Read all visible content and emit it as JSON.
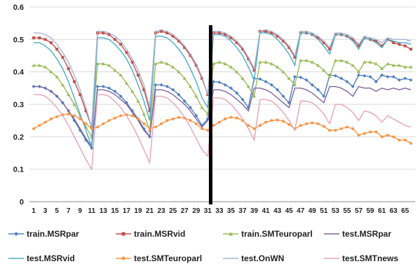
{
  "chart_data": {
    "type": "line",
    "x": [
      1,
      2,
      3,
      4,
      5,
      6,
      7,
      8,
      9,
      10,
      11,
      12,
      13,
      14,
      15,
      16,
      17,
      18,
      19,
      20,
      21,
      22,
      23,
      24,
      25,
      26,
      27,
      28,
      29,
      30,
      31,
      32,
      33,
      34,
      35,
      36,
      37,
      38,
      39,
      40,
      41,
      42,
      43,
      44,
      45,
      46,
      47,
      48,
      49,
      50,
      51,
      52,
      53,
      54,
      55,
      56,
      57,
      58,
      59,
      60,
      61,
      62,
      63,
      64,
      65,
      66
    ],
    "x_tick_labels": [
      "1",
      "3",
      "5",
      "7",
      "9",
      "11",
      "13",
      "15",
      "17",
      "19",
      "21",
      "23",
      "25",
      "27",
      "29",
      "31",
      "33",
      "35",
      "37",
      "39",
      "41",
      "43",
      "45",
      "47",
      "49",
      "51",
      "53",
      "55",
      "57",
      "59",
      "61",
      "63",
      "65"
    ],
    "ylim": [
      0,
      0.6
    ],
    "y_tick_labels": [
      "0",
      "0.1",
      "0.2",
      "0.3",
      "0.4",
      "0.5",
      "0.6"
    ],
    "grid": "horizontal",
    "legend_position": "bottom",
    "vertical_marker_x": 31.5,
    "series": [
      {
        "name": "train.MSRpar",
        "color": "#4f81bd",
        "marker": "diamond",
        "values": [
          0.355,
          0.355,
          0.35,
          0.34,
          0.325,
          0.305,
          0.28,
          0.25,
          0.22,
          0.19,
          0.165,
          0.355,
          0.355,
          0.35,
          0.34,
          0.325,
          0.305,
          0.28,
          0.255,
          0.225,
          0.2,
          0.36,
          0.36,
          0.355,
          0.345,
          0.33,
          0.31,
          0.29,
          0.265,
          0.235,
          0.255,
          0.37,
          0.368,
          0.36,
          0.35,
          0.335,
          0.315,
          0.29,
          0.38,
          0.378,
          0.37,
          0.36,
          0.345,
          0.325,
          0.305,
          0.385,
          0.383,
          0.375,
          0.36,
          0.345,
          0.325,
          0.39,
          0.388,
          0.38,
          0.37,
          0.355,
          0.39,
          0.388,
          0.385,
          0.37,
          0.39,
          0.385,
          0.385,
          0.375,
          0.38,
          0.375
        ]
      },
      {
        "name": "train.MSRvid",
        "color": "#c0504d",
        "marker": "square",
        "values": [
          0.505,
          0.505,
          0.5,
          0.49,
          0.47,
          0.445,
          0.41,
          0.37,
          0.33,
          0.28,
          0.23,
          0.52,
          0.52,
          0.515,
          0.5,
          0.485,
          0.46,
          0.43,
          0.39,
          0.345,
          0.28,
          0.52,
          0.525,
          0.52,
          0.51,
          0.495,
          0.475,
          0.45,
          0.42,
          0.38,
          0.33,
          0.52,
          0.52,
          0.515,
          0.505,
          0.49,
          0.47,
          0.44,
          0.405,
          0.525,
          0.525,
          0.52,
          0.51,
          0.495,
          0.475,
          0.445,
          0.52,
          0.52,
          0.515,
          0.505,
          0.49,
          0.47,
          0.515,
          0.515,
          0.51,
          0.5,
          0.48,
          0.505,
          0.5,
          0.495,
          0.48,
          0.5,
          0.49,
          0.485,
          0.48,
          0.47
        ]
      },
      {
        "name": "train.SMTeuroparl",
        "color": "#9bbb59",
        "marker": "triangle",
        "values": [
          0.42,
          0.42,
          0.415,
          0.4,
          0.385,
          0.36,
          0.33,
          0.3,
          0.265,
          0.23,
          0.2,
          0.425,
          0.425,
          0.42,
          0.405,
          0.39,
          0.365,
          0.34,
          0.31,
          0.27,
          0.22,
          0.425,
          0.43,
          0.425,
          0.415,
          0.4,
          0.38,
          0.355,
          0.325,
          0.29,
          0.27,
          0.425,
          0.43,
          0.425,
          0.415,
          0.4,
          0.38,
          0.355,
          0.325,
          0.43,
          0.43,
          0.425,
          0.415,
          0.4,
          0.38,
          0.36,
          0.435,
          0.435,
          0.43,
          0.42,
          0.405,
          0.385,
          0.435,
          0.435,
          0.43,
          0.42,
          0.4,
          0.43,
          0.43,
          0.425,
          0.41,
          0.425,
          0.42,
          0.42,
          0.415,
          0.415
        ]
      },
      {
        "name": "test.MSRpar",
        "color": "#8064a2",
        "marker": "none",
        "values": [
          0.355,
          0.355,
          0.35,
          0.34,
          0.325,
          0.305,
          0.28,
          0.255,
          0.225,
          0.195,
          0.17,
          0.345,
          0.345,
          0.34,
          0.33,
          0.315,
          0.3,
          0.275,
          0.25,
          0.22,
          0.2,
          0.345,
          0.345,
          0.34,
          0.33,
          0.315,
          0.3,
          0.28,
          0.255,
          0.23,
          0.25,
          0.345,
          0.345,
          0.34,
          0.33,
          0.315,
          0.3,
          0.28,
          0.35,
          0.35,
          0.345,
          0.335,
          0.32,
          0.305,
          0.29,
          0.35,
          0.35,
          0.345,
          0.335,
          0.32,
          0.305,
          0.355,
          0.355,
          0.35,
          0.34,
          0.325,
          0.355,
          0.35,
          0.35,
          0.34,
          0.35,
          0.345,
          0.35,
          0.345,
          0.35,
          0.345
        ]
      },
      {
        "name": "test.MSRvid",
        "color": "#4bacc6",
        "marker": "none",
        "values": [
          0.49,
          0.49,
          0.48,
          0.465,
          0.44,
          0.41,
          0.37,
          0.32,
          0.27,
          0.22,
          0.17,
          0.505,
          0.505,
          0.5,
          0.485,
          0.465,
          0.44,
          0.405,
          0.36,
          0.31,
          0.25,
          0.51,
          0.51,
          0.505,
          0.49,
          0.47,
          0.445,
          0.41,
          0.37,
          0.32,
          0.29,
          0.515,
          0.515,
          0.51,
          0.495,
          0.475,
          0.45,
          0.415,
          0.375,
          0.52,
          0.52,
          0.515,
          0.5,
          0.48,
          0.455,
          0.42,
          0.52,
          0.52,
          0.515,
          0.5,
          0.48,
          0.455,
          0.515,
          0.515,
          0.51,
          0.495,
          0.47,
          0.505,
          0.5,
          0.49,
          0.475,
          0.5,
          0.495,
          0.49,
          0.49,
          0.485
        ]
      },
      {
        "name": "test.SMTeuroparl",
        "color": "#f79646",
        "marker": "circle",
        "values": [
          0.225,
          0.235,
          0.245,
          0.255,
          0.262,
          0.268,
          0.27,
          0.265,
          0.255,
          0.24,
          0.225,
          0.23,
          0.24,
          0.25,
          0.258,
          0.265,
          0.268,
          0.265,
          0.255,
          0.24,
          0.225,
          0.23,
          0.24,
          0.25,
          0.255,
          0.26,
          0.258,
          0.25,
          0.24,
          0.225,
          0.22,
          0.235,
          0.245,
          0.255,
          0.26,
          0.258,
          0.25,
          0.235,
          0.225,
          0.235,
          0.245,
          0.25,
          0.252,
          0.248,
          0.238,
          0.225,
          0.235,
          0.24,
          0.243,
          0.24,
          0.232,
          0.22,
          0.22,
          0.225,
          0.23,
          0.225,
          0.205,
          0.21,
          0.215,
          0.215,
          0.2,
          0.205,
          0.2,
          0.19,
          0.19,
          0.18
        ]
      },
      {
        "name": "test.OnWN",
        "color": "#a5b4d1",
        "marker": "none",
        "values": [
          0.52,
          0.52,
          0.515,
          0.505,
          0.485,
          0.46,
          0.43,
          0.39,
          0.345,
          0.29,
          0.23,
          0.525,
          0.525,
          0.52,
          0.51,
          0.495,
          0.47,
          0.44,
          0.405,
          0.36,
          0.29,
          0.525,
          0.53,
          0.525,
          0.515,
          0.5,
          0.48,
          0.455,
          0.425,
          0.385,
          0.33,
          0.525,
          0.525,
          0.52,
          0.51,
          0.495,
          0.475,
          0.445,
          0.41,
          0.525,
          0.53,
          0.525,
          0.515,
          0.5,
          0.48,
          0.45,
          0.525,
          0.525,
          0.52,
          0.51,
          0.495,
          0.475,
          0.52,
          0.52,
          0.515,
          0.505,
          0.485,
          0.51,
          0.505,
          0.5,
          0.49,
          0.505,
          0.5,
          0.5,
          0.5,
          0.495
        ]
      },
      {
        "name": "test.SMTnews",
        "color": "#e6a4b4",
        "marker": "none",
        "values": [
          0.33,
          0.33,
          0.325,
          0.31,
          0.29,
          0.265,
          0.235,
          0.2,
          0.165,
          0.13,
          0.1,
          0.33,
          0.33,
          0.325,
          0.31,
          0.29,
          0.265,
          0.235,
          0.2,
          0.16,
          0.12,
          0.325,
          0.325,
          0.32,
          0.305,
          0.285,
          0.26,
          0.23,
          0.195,
          0.16,
          0.14,
          0.32,
          0.32,
          0.315,
          0.3,
          0.28,
          0.255,
          0.225,
          0.19,
          0.315,
          0.315,
          0.31,
          0.295,
          0.275,
          0.25,
          0.22,
          0.31,
          0.31,
          0.305,
          0.29,
          0.27,
          0.24,
          0.3,
          0.3,
          0.29,
          0.275,
          0.25,
          0.28,
          0.275,
          0.265,
          0.245,
          0.265,
          0.255,
          0.245,
          0.235,
          0.23
        ]
      }
    ]
  }
}
